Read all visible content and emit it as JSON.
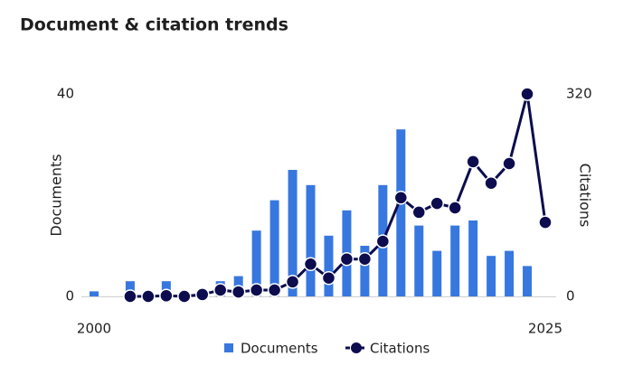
{
  "chart_data": {
    "type": "bar-line",
    "title": "Document & citation trends",
    "x": [
      2000,
      2001,
      2002,
      2003,
      2004,
      2005,
      2006,
      2007,
      2008,
      2009,
      2010,
      2011,
      2012,
      2013,
      2014,
      2015,
      2016,
      2017,
      2018,
      2019,
      2020,
      2021,
      2022,
      2023,
      2024,
      2025
    ],
    "xlim": [
      2000,
      2025
    ],
    "xticks": [
      2000,
      2025
    ],
    "ylabel": "Documents",
    "ylim": [
      0,
      40
    ],
    "yticks": [
      0,
      40
    ],
    "y2label": "Citations",
    "y2lim": [
      0,
      320
    ],
    "y2ticks": [
      0,
      320
    ],
    "series": [
      {
        "name": "Documents",
        "type": "bar",
        "color": "#3777e0",
        "values": [
          1,
          0,
          3,
          0,
          3,
          0,
          0,
          3,
          4,
          13,
          19,
          25,
          22,
          12,
          17,
          10,
          22,
          33,
          14,
          9,
          14,
          15,
          8,
          9,
          6,
          null
        ]
      },
      {
        "name": "Citations",
        "type": "line",
        "axis": "y2",
        "color": "#0c0c4e",
        "values": [
          null,
          null,
          0,
          0,
          1,
          0,
          3,
          10,
          7,
          10,
          10,
          23,
          51,
          29,
          59,
          59,
          87,
          156,
          133,
          147,
          140,
          213,
          179,
          210,
          320,
          117
        ]
      }
    ]
  }
}
